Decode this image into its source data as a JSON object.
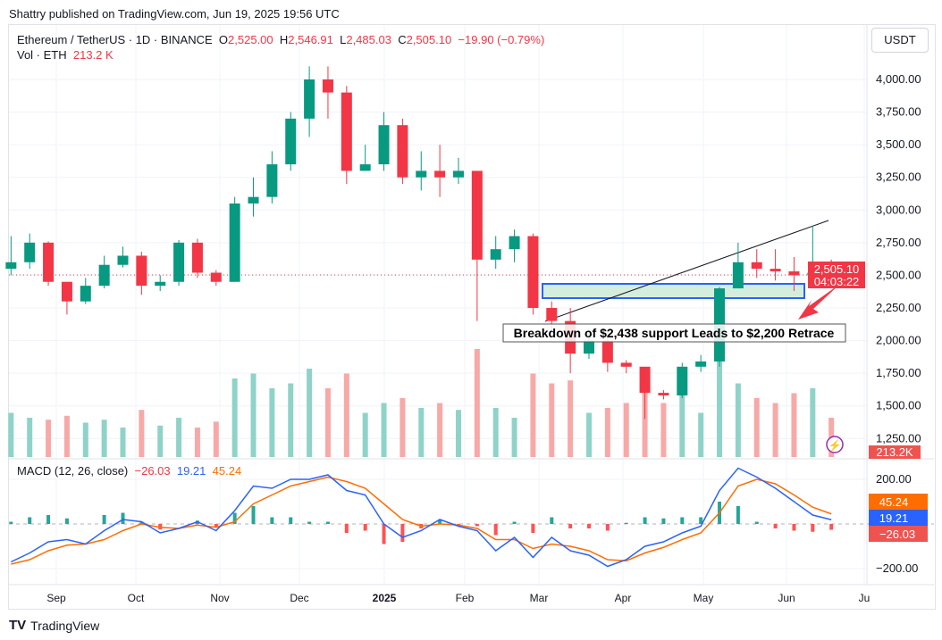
{
  "publisher": "Shattry published on TradingView.com, Jun 19, 2025 19:56 UTC",
  "legend": {
    "symbol": "Ethereum / TetherUS · 1D · BINANCE",
    "o_label": "O",
    "o": "2,525.00",
    "h_label": "H",
    "h": "2,546.91",
    "l_label": "L",
    "l": "2,485.03",
    "c_label": "C",
    "c": "2,505.10",
    "change": "−19.90 (−0.79%)",
    "vol_label": "Vol · ETH",
    "vol": "213.2 K"
  },
  "currency_button": "USDT",
  "macd_legend": {
    "label": "MACD (12, 26, close)",
    "hist": "−26.03",
    "macd": "19.21",
    "signal": "45.24"
  },
  "brand": "TradingView",
  "annotation": "Breakdown of $2,438 support Leads to $2,200 Retrace",
  "price_tag": {
    "price": "2,505.10",
    "countdown": "04:03:22"
  },
  "volume_tag": "213.2K",
  "macd_tags": {
    "signal": "45.24",
    "macd": "19.21",
    "hist": "−26.03"
  },
  "colors": {
    "up": "#089981",
    "down": "#f23645",
    "macd": "#2962ff",
    "signal": "#ff6d00",
    "zone": "#d4eedd",
    "zone_border": "#2962ff"
  },
  "chart_data": {
    "type": "candlestick",
    "title": "Ethereum / TetherUS · 1D · BINANCE",
    "x_ticks": [
      "Sep",
      "Oct",
      "Nov",
      "Dec",
      "2025",
      "Feb",
      "Mar",
      "Apr",
      "May",
      "Jun",
      "Ju"
    ],
    "y_ticks": [
      "4,000.00",
      "3,750.00",
      "3,500.00",
      "3,250.00",
      "3,000.00",
      "2,750.00",
      "2,500.00",
      "2,250.00",
      "2,000.00",
      "1,750.00",
      "1,500.00",
      "1,250.00"
    ],
    "macd_ticks": [
      "200.00",
      "−200.00"
    ],
    "ylim": [
      1150,
      4250
    ],
    "weeks_from": "2024-08-12",
    "close": [
      2600,
      2750,
      2450,
      2300,
      2420,
      2580,
      2650,
      2420,
      2450,
      2750,
      2520,
      2450,
      3050,
      3100,
      3350,
      3700,
      4000,
      3900,
      3300,
      3350,
      3650,
      3250,
      3300,
      3250,
      3300,
      2620,
      2700,
      2800,
      2250,
      2150,
      1900,
      2000,
      1830,
      1800,
      1600,
      1580,
      1800,
      1840,
      2400,
      2600,
      2550,
      2530,
      2500,
      2520,
      2505
    ],
    "high": [
      2800,
      2820,
      2760,
      2450,
      2480,
      2650,
      2720,
      2680,
      2500,
      2770,
      2780,
      2540,
      3100,
      3250,
      3450,
      3750,
      4100,
      4100,
      3950,
      3500,
      3750,
      3700,
      3450,
      3500,
      3400,
      3100,
      2800,
      2850,
      2820,
      2300,
      2250,
      2100,
      2080,
      1850,
      1780,
      1620,
      1830,
      1890,
      2410,
      2750,
      2700,
      2700,
      2640,
      2880,
      2620
    ],
    "low": [
      2500,
      2550,
      2420,
      2200,
      2280,
      2400,
      2560,
      2350,
      2380,
      2420,
      2480,
      2420,
      2450,
      2950,
      3050,
      3300,
      3560,
      3700,
      3200,
      3300,
      3300,
      3200,
      3150,
      3100,
      3200,
      2150,
      2550,
      2600,
      2200,
      2060,
      1750,
      1860,
      1760,
      1750,
      1400,
      1550,
      1560,
      1760,
      1800,
      2400,
      2480,
      2460,
      2380,
      2480,
      2480
    ],
    "volume": [
      45,
      40,
      38,
      42,
      35,
      38,
      30,
      48,
      32,
      40,
      30,
      36,
      80,
      85,
      70,
      75,
      90,
      70,
      85,
      45,
      55,
      60,
      50,
      55,
      48,
      110,
      50,
      40,
      85,
      75,
      78,
      45,
      50,
      55,
      90,
      55,
      70,
      45,
      110,
      75,
      60,
      55,
      65,
      70,
      40
    ],
    "macd": [
      -170,
      -130,
      -80,
      -70,
      -90,
      -30,
      20,
      10,
      -40,
      -20,
      10,
      -30,
      60,
      170,
      160,
      200,
      200,
      220,
      150,
      130,
      0,
      -60,
      -30,
      20,
      -10,
      -30,
      -120,
      -60,
      -150,
      -60,
      -120,
      -140,
      -190,
      -160,
      -100,
      -80,
      -40,
      -10,
      150,
      250,
      210,
      160,
      100,
      40,
      19
    ],
    "signal": [
      -180,
      -160,
      -120,
      -95,
      -90,
      -70,
      -30,
      0,
      -15,
      -20,
      -5,
      -15,
      10,
      90,
      130,
      170,
      190,
      210,
      190,
      160,
      90,
      20,
      -10,
      0,
      -5,
      -20,
      -70,
      -70,
      -110,
      -90,
      -100,
      -120,
      -160,
      -165,
      -130,
      -105,
      -70,
      -40,
      50,
      170,
      200,
      180,
      130,
      75,
      45
    ]
  }
}
